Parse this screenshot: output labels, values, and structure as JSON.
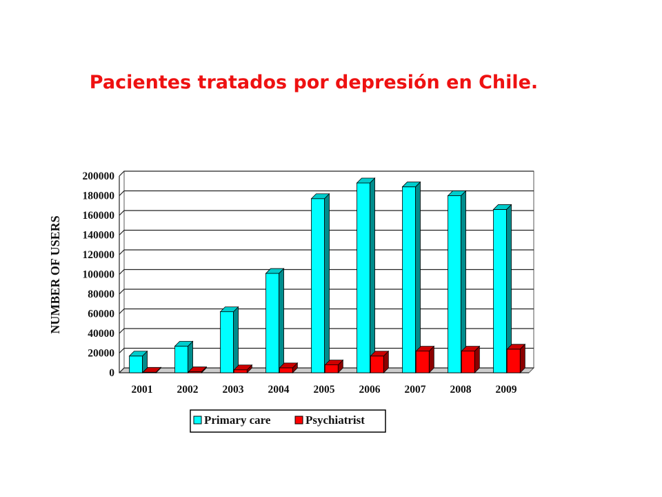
{
  "slide": {
    "title": "Pacientes tratados por depresión en Chile."
  },
  "chart_data": {
    "type": "bar",
    "title": "",
    "xlabel": "",
    "ylabel": "NUMBER OF USERS",
    "categories": [
      "2001",
      "2002",
      "2003",
      "2004",
      "2005",
      "2006",
      "2007",
      "2008",
      "2009"
    ],
    "series": [
      {
        "name": "Primary care",
        "color": "#00ffff",
        "values": [
          17000,
          27000,
          62000,
          101000,
          177000,
          193000,
          189000,
          180000,
          166000
        ]
      },
      {
        "name": "Psychiatrist",
        "color": "#ff0000",
        "values": [
          500,
          1000,
          3000,
          5000,
          8000,
          17000,
          22000,
          22000,
          24000
        ]
      }
    ],
    "ylim": [
      0,
      200000
    ],
    "yticks": [
      0,
      20000,
      40000,
      60000,
      80000,
      100000,
      120000,
      140000,
      160000,
      180000,
      200000
    ],
    "grid": true,
    "style": "3d-columns",
    "legend_position": "bottom"
  }
}
